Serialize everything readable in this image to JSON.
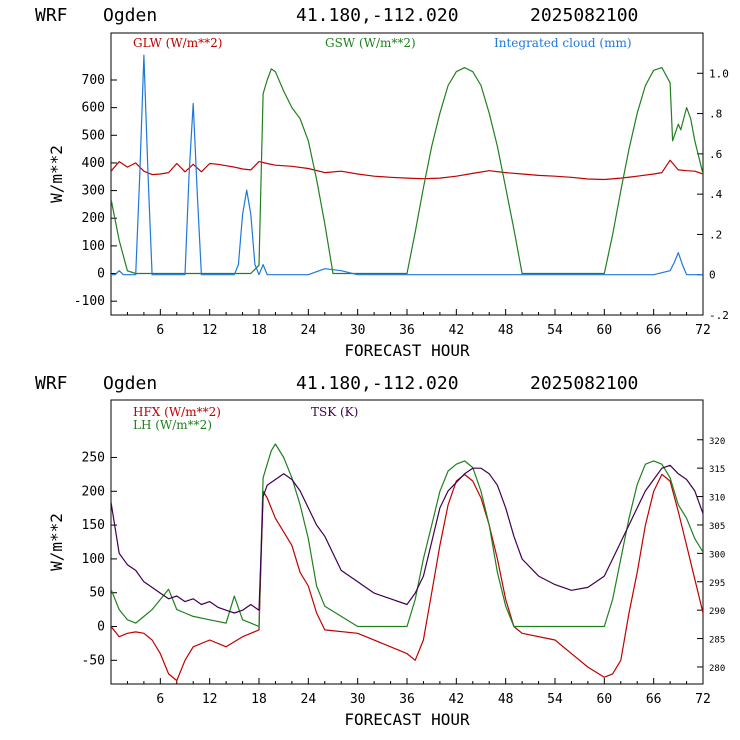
{
  "chart_data": [
    {
      "type": "line",
      "header": {
        "model": "WRF",
        "location": "Ogden",
        "coords": "41.180,-112.020",
        "run": "2025082100"
      },
      "xlabel": "FORECAST HOUR",
      "ylabel": "W/m**2",
      "xlim": [
        0,
        72
      ],
      "xticks": [
        6,
        12,
        18,
        24,
        30,
        36,
        42,
        48,
        54,
        60,
        66,
        72
      ],
      "ylim": [
        -150,
        870
      ],
      "yticks": [
        -100,
        0,
        100,
        200,
        300,
        400,
        500,
        600,
        700
      ],
      "y2lim": [
        -0.2,
        1.2
      ],
      "y2ticks": [
        {
          "v": 1.0,
          "label": "1.0"
        },
        {
          "v": 0.8,
          "label": ".8"
        },
        {
          "v": 0.6,
          "label": ".6"
        },
        {
          "v": 0.4,
          "label": ".4"
        },
        {
          "v": 0.2,
          "label": ".2"
        },
        {
          "v": 0.0,
          "label": "0"
        },
        {
          "v": -0.2,
          "label": "-.2"
        }
      ],
      "legend": [
        {
          "label": "GLW (W/m**2)",
          "color": "#c00000"
        },
        {
          "label": "GSW (W/m**2)",
          "color": "#208020"
        },
        {
          "label": "Integrated cloud (mm)",
          "color": "#1e78dc"
        }
      ],
      "series": [
        {
          "name": "GLW (W/m**2)",
          "axis": "left",
          "color": "#c00000",
          "x": [
            0,
            1,
            2,
            3,
            4,
            5,
            6,
            7,
            8,
            9,
            10,
            11,
            12,
            13,
            14,
            15,
            16,
            17,
            18,
            19,
            20,
            22,
            24,
            26,
            28,
            30,
            32,
            34,
            36,
            38,
            40,
            42,
            44,
            46,
            48,
            50,
            52,
            54,
            56,
            58,
            60,
            62,
            64,
            66,
            67,
            68,
            69,
            70,
            71,
            72
          ],
          "y": [
            370,
            405,
            385,
            400,
            370,
            358,
            360,
            365,
            398,
            368,
            395,
            368,
            398,
            395,
            390,
            385,
            378,
            375,
            405,
            398,
            392,
            388,
            380,
            365,
            370,
            360,
            352,
            348,
            345,
            343,
            345,
            352,
            362,
            372,
            365,
            360,
            355,
            352,
            348,
            342,
            340,
            345,
            352,
            360,
            365,
            410,
            375,
            372,
            370,
            360
          ]
        },
        {
          "name": "GSW (W/m**2)",
          "axis": "left",
          "color": "#208020",
          "x": [
            0,
            1,
            2,
            3,
            4,
            5,
            6,
            7,
            8,
            9,
            10,
            11,
            12,
            13,
            14,
            15,
            16,
            17,
            18,
            18.5,
            19,
            19.5,
            20,
            21,
            22,
            23,
            24,
            25,
            26,
            27,
            36,
            37,
            38,
            39,
            40,
            41,
            42,
            43,
            44,
            45,
            46,
            47,
            48,
            49,
            50,
            60,
            61,
            62,
            63,
            64,
            65,
            66,
            67,
            68,
            68.3,
            69,
            69.3,
            70,
            70.5,
            71,
            72
          ],
          "y": [
            270,
            120,
            10,
            0,
            0,
            0,
            0,
            0,
            0,
            0,
            0,
            0,
            0,
            0,
            0,
            0,
            0,
            0,
            30,
            650,
            700,
            740,
            730,
            660,
            600,
            560,
            480,
            340,
            180,
            0,
            0,
            150,
            310,
            460,
            580,
            680,
            730,
            745,
            730,
            680,
            580,
            460,
            310,
            160,
            0,
            0,
            140,
            300,
            450,
            580,
            680,
            735,
            745,
            690,
            480,
            540,
            520,
            600,
            560,
            480,
            360
          ]
        },
        {
          "name": "Integrated cloud (mm)",
          "axis": "right",
          "color": "#1e78dc",
          "x": [
            0,
            0.5,
            1,
            1.5,
            2,
            3,
            3.5,
            4,
            4.5,
            5,
            6,
            8,
            9,
            9.5,
            10,
            10.5,
            11,
            12,
            13,
            14,
            15,
            15.5,
            16,
            16.5,
            17,
            17.5,
            18,
            18.5,
            19,
            20,
            22,
            24,
            26,
            28,
            30,
            32,
            36,
            48,
            60,
            66,
            68,
            68.5,
            69,
            69.5,
            70,
            72
          ],
          "y": [
            0,
            0,
            0.02,
            0,
            0,
            0,
            0.5,
            1.09,
            0.5,
            0,
            0,
            0,
            0,
            0.5,
            0.85,
            0.4,
            0,
            0,
            0,
            0,
            0,
            0.05,
            0.3,
            0.42,
            0.3,
            0.05,
            0,
            0.05,
            0,
            0,
            0,
            0,
            0.03,
            0.02,
            0,
            0,
            0,
            0,
            0,
            0,
            0.02,
            0.06,
            0.11,
            0.05,
            0,
            0
          ]
        }
      ]
    },
    {
      "type": "line",
      "header": {
        "model": "WRF",
        "location": "Ogden",
        "coords": "41.180,-112.020",
        "run": "2025082100"
      },
      "xlabel": "FORECAST HOUR",
      "ylabel": "W/m**2",
      "xlim": [
        0,
        72
      ],
      "xticks": [
        6,
        12,
        18,
        24,
        30,
        36,
        42,
        48,
        54,
        60,
        66,
        72
      ],
      "ylim": [
        -85,
        335
      ],
      "yticks": [
        -50,
        0,
        50,
        100,
        150,
        200,
        250
      ],
      "y2lim": [
        277,
        327
      ],
      "y2ticks": [
        {
          "v": 320,
          "label": "320"
        },
        {
          "v": 315,
          "label": "315"
        },
        {
          "v": 310,
          "label": "310"
        },
        {
          "v": 305,
          "label": "305"
        },
        {
          "v": 300,
          "label": "300"
        },
        {
          "v": 295,
          "label": "295"
        },
        {
          "v": 290,
          "label": "290"
        },
        {
          "v": 285,
          "label": "285"
        },
        {
          "v": 280,
          "label": "280"
        }
      ],
      "legend": [
        {
          "label": "HFX (W/m**2)",
          "color": "#c00000"
        },
        {
          "label": "LH  (W/m**2)",
          "color": "#208020"
        },
        {
          "label": "TSK (K)",
          "color": "#400050"
        }
      ],
      "series": [
        {
          "name": "HFX (W/m**2)",
          "axis": "left",
          "color": "#c00000",
          "x": [
            0,
            1,
            2,
            3,
            4,
            5,
            6,
            7,
            8,
            9,
            10,
            12,
            14,
            16,
            17,
            18,
            18.5,
            19,
            20,
            21,
            22,
            23,
            24,
            25,
            26,
            30,
            36,
            37,
            38,
            39,
            40,
            41,
            42,
            43,
            44,
            45,
            46,
            47,
            48,
            49,
            50,
            54,
            56,
            58,
            60,
            61,
            62,
            63,
            64,
            65,
            66,
            67,
            68,
            69,
            70,
            71,
            72
          ],
          "y": [
            0,
            -15,
            -10,
            -8,
            -10,
            -20,
            -40,
            -70,
            -80,
            -50,
            -30,
            -20,
            -30,
            -15,
            -10,
            -5,
            200,
            190,
            160,
            140,
            120,
            80,
            60,
            20,
            -5,
            -10,
            -40,
            -50,
            -20,
            50,
            120,
            180,
            215,
            225,
            215,
            190,
            150,
            100,
            40,
            0,
            -10,
            -20,
            -40,
            -60,
            -75,
            -70,
            -50,
            20,
            80,
            150,
            200,
            225,
            215,
            170,
            120,
            70,
            20
          ]
        },
        {
          "name": "LH  (W/m**2)",
          "axis": "left",
          "color": "#208020",
          "x": [
            0,
            1,
            2,
            3,
            4,
            5,
            6,
            7,
            8,
            9,
            10,
            12,
            14,
            15,
            16,
            17,
            18,
            18.5,
            19,
            19.5,
            20,
            21,
            22,
            23,
            24,
            25,
            26,
            30,
            36,
            37,
            38,
            39,
            40,
            41,
            42,
            43,
            44,
            45,
            46,
            47,
            48,
            49,
            50,
            60,
            61,
            62,
            63,
            64,
            65,
            66,
            67,
            68,
            69,
            70,
            71,
            72
          ],
          "y": [
            55,
            25,
            10,
            5,
            15,
            25,
            40,
            55,
            25,
            20,
            15,
            10,
            5,
            45,
            10,
            5,
            0,
            220,
            240,
            260,
            270,
            250,
            220,
            180,
            130,
            60,
            30,
            0,
            0,
            40,
            100,
            150,
            200,
            230,
            240,
            245,
            235,
            200,
            150,
            80,
            30,
            0,
            0,
            0,
            40,
            100,
            160,
            210,
            240,
            245,
            240,
            220,
            180,
            160,
            130,
            110
          ]
        },
        {
          "name": "TSK (K)",
          "axis": "right",
          "color": "#400050",
          "x": [
            0,
            1,
            2,
            3,
            4,
            5,
            6,
            7,
            8,
            9,
            10,
            11,
            12,
            13,
            14,
            15,
            16,
            17,
            18,
            18.5,
            19,
            20,
            21,
            22,
            23,
            24,
            25,
            26,
            27,
            28,
            30,
            32,
            34,
            36,
            37,
            38,
            39,
            40,
            41,
            42,
            43,
            44,
            45,
            46,
            47,
            48,
            49,
            50,
            52,
            54,
            56,
            58,
            60,
            61,
            62,
            63,
            64,
            65,
            66,
            67,
            68,
            69,
            70,
            71,
            72
          ],
          "y": [
            309,
            300,
            298,
            297,
            295,
            294,
            293,
            292,
            292.5,
            291.5,
            292,
            291,
            291.5,
            290.5,
            290,
            289.5,
            290,
            291,
            290,
            310,
            312,
            313,
            314,
            313,
            311,
            308,
            305,
            303,
            300,
            297,
            295,
            293,
            292,
            291,
            293,
            296,
            302,
            308,
            311,
            312.5,
            314,
            315,
            315,
            314,
            312,
            308,
            303,
            299,
            296,
            294.5,
            293.5,
            294,
            296,
            299,
            302,
            305,
            308,
            311,
            313,
            315,
            315.5,
            314,
            313,
            311,
            307
          ]
        }
      ]
    }
  ]
}
